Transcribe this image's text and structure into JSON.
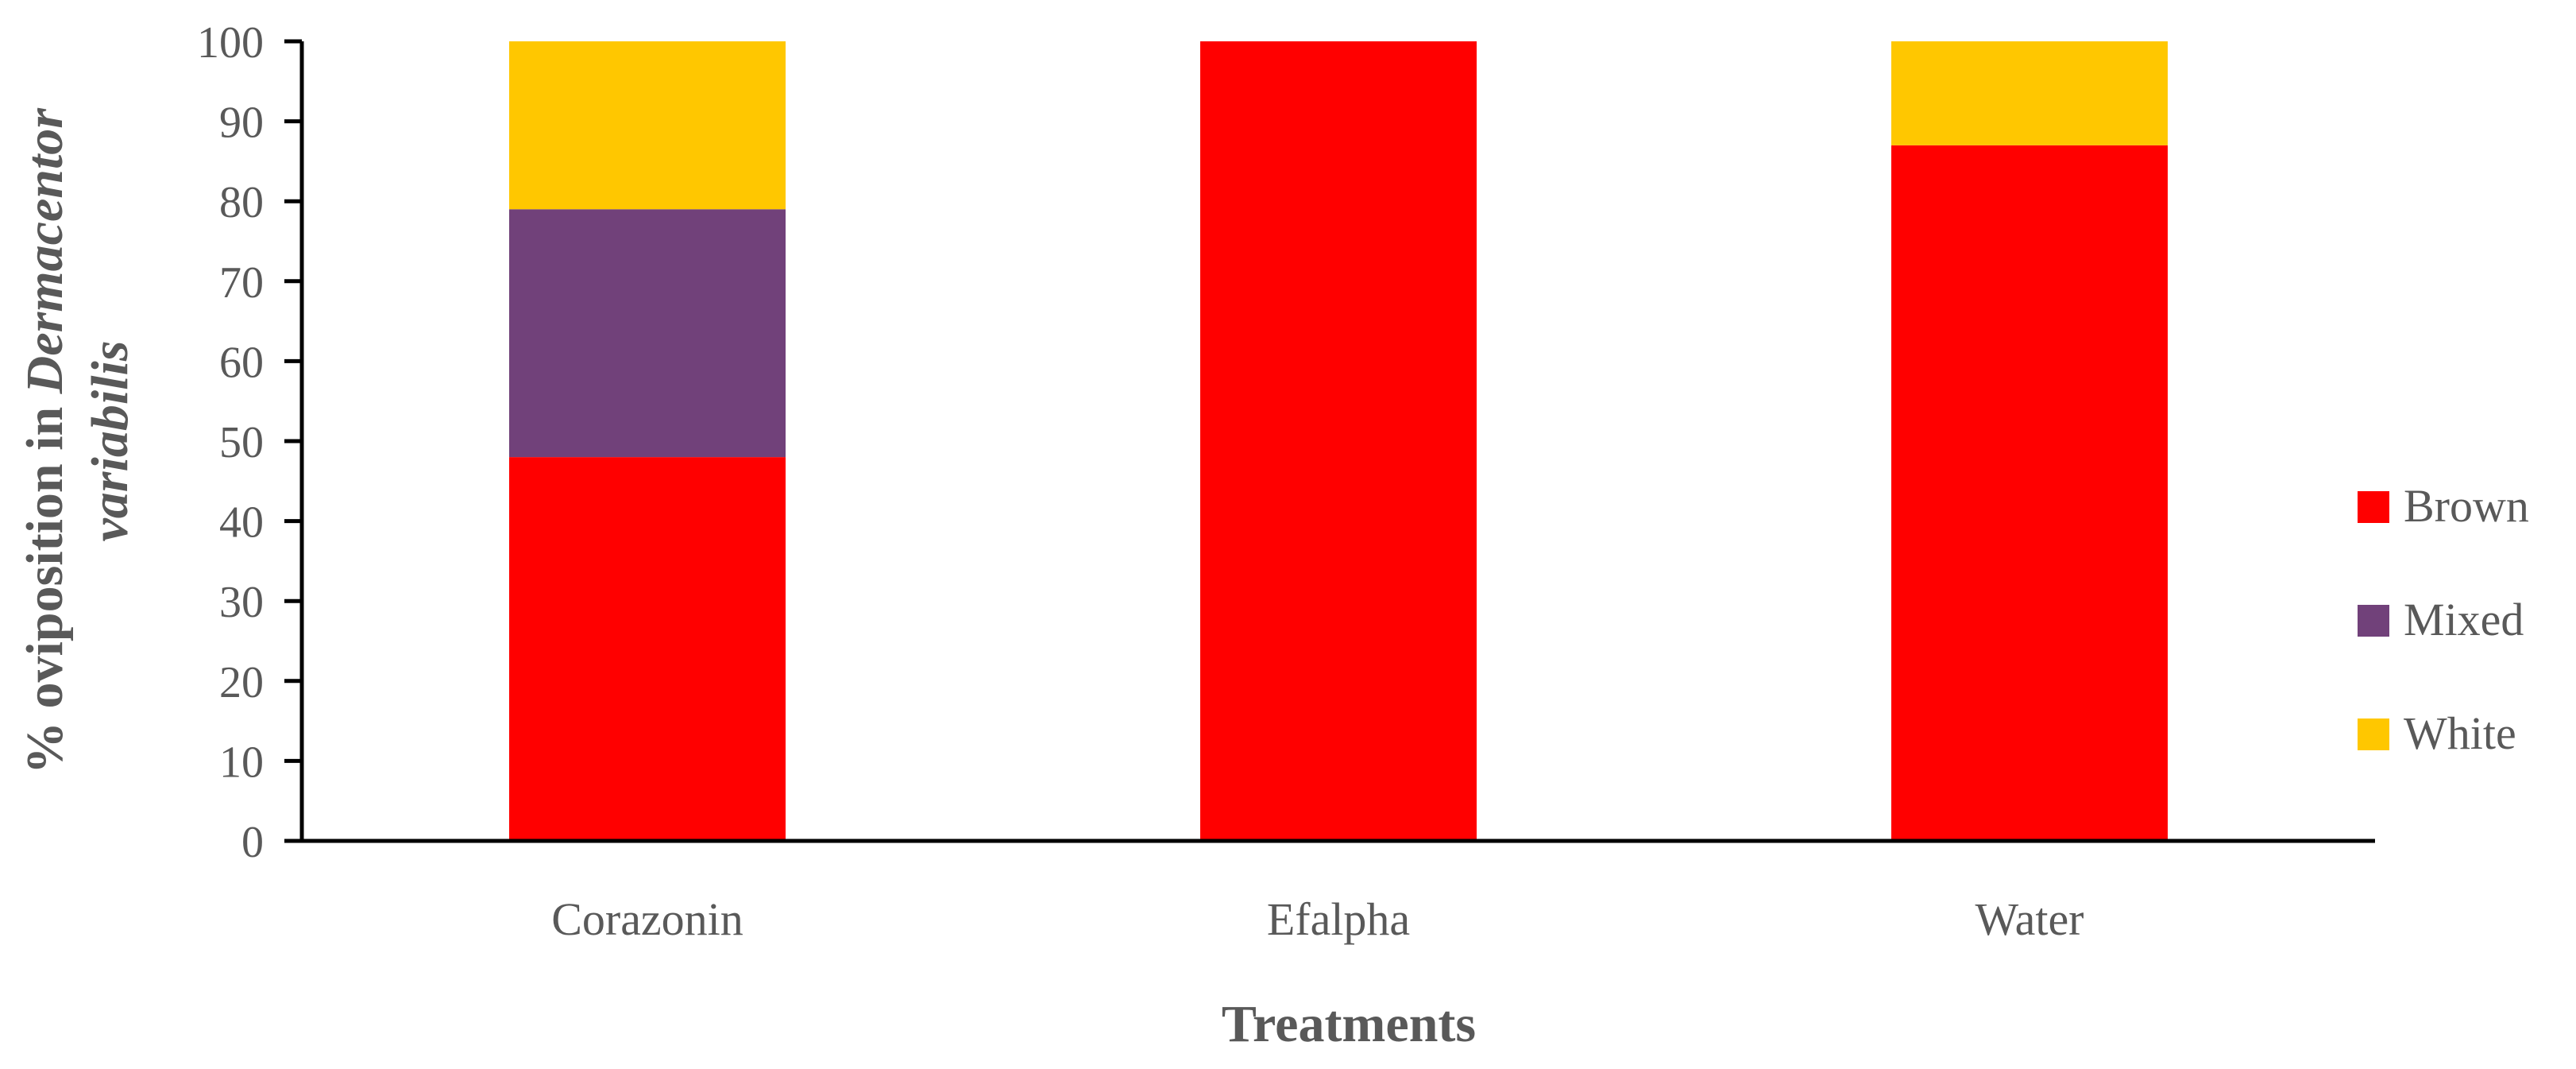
{
  "chart_data": {
    "type": "bar",
    "stacked": true,
    "categories": [
      "Corazonin",
      "Efalpha",
      "Water"
    ],
    "series": [
      {
        "name": "Brown",
        "color": "#ff0000",
        "values": [
          48,
          100,
          87
        ]
      },
      {
        "name": "Mixed",
        "color": "#71417a",
        "values": [
          31,
          0,
          0
        ]
      },
      {
        "name": "White",
        "color": "#ffc700",
        "values": [
          21,
          0,
          13
        ]
      }
    ],
    "xlabel": "Treatments",
    "ylabel_line1_prefix": "% oviposition in ",
    "ylabel_line1_italic": "Dermacentor",
    "ylabel_line2_italic": "variabilis",
    "ylim": [
      0,
      100
    ],
    "yticks": [
      0,
      10,
      20,
      30,
      40,
      50,
      60,
      70,
      80,
      90,
      100
    ],
    "legend_position": "right",
    "grid": false
  }
}
